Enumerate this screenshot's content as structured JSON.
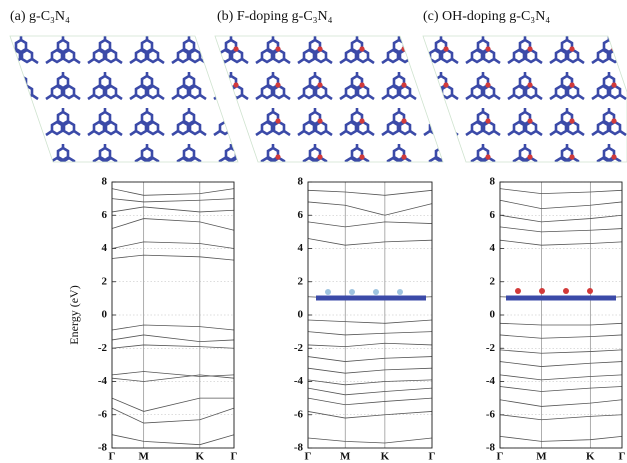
{
  "chart_data": [
    {
      "type": "line",
      "title": "(a) g-C₃N₄",
      "ylabel": "Energy (eV)",
      "color": "#555555",
      "grid": true,
      "x": [
        0,
        0.26,
        0.72,
        1
      ],
      "xlim": [
        0,
        1
      ],
      "xticks": [
        {
          "value": 0,
          "label": "Γ"
        },
        {
          "value": 0.26,
          "label": "M"
        },
        {
          "value": 0.72,
          "label": "K"
        },
        {
          "value": 1,
          "label": "Γ"
        }
      ],
      "ylim": [
        -8,
        8
      ],
      "yticks": [
        -8,
        -6,
        -4,
        -2,
        0,
        2,
        4,
        6,
        8
      ],
      "series": [
        {
          "values": [
            7.6,
            7.2,
            7.3,
            7.6
          ]
        },
        {
          "values": [
            7.0,
            6.8,
            6.9,
            7.0
          ]
        },
        {
          "values": [
            6.2,
            6.5,
            6.2,
            6.3
          ]
        },
        {
          "values": [
            5.2,
            5.8,
            5.6,
            5.1
          ]
        },
        {
          "values": [
            4.0,
            4.4,
            4.3,
            4.0
          ]
        },
        {
          "values": [
            3.4,
            3.6,
            3.5,
            3.3
          ]
        },
        {
          "values": [
            -0.9,
            -0.6,
            -0.7,
            -0.9
          ]
        },
        {
          "values": [
            -1.5,
            -1.2,
            -1.6,
            -1.5
          ]
        },
        {
          "values": [
            -2.0,
            -1.8,
            -1.9,
            -2.0
          ]
        },
        {
          "values": [
            -3.6,
            -3.4,
            -3.7,
            -3.6
          ]
        },
        {
          "values": [
            -3.8,
            -4.0,
            -3.6,
            -3.8
          ]
        },
        {
          "values": [
            -5.0,
            -5.8,
            -5.0,
            -5.0
          ]
        },
        {
          "values": [
            -5.6,
            -6.5,
            -6.3,
            -5.6
          ]
        },
        {
          "values": [
            -7.2,
            -7.6,
            -7.8,
            -7.2
          ]
        }
      ]
    },
    {
      "type": "line",
      "title": "(b) F-doping g-C₃N₄",
      "color": "#555555",
      "grid": true,
      "x": [
        0,
        0.3,
        0.62,
        1
      ],
      "xlim": [
        0,
        1
      ],
      "xticks": [
        {
          "value": 0,
          "label": "Γ"
        },
        {
          "value": 0.3,
          "label": "M"
        },
        {
          "value": 0.62,
          "label": "K"
        },
        {
          "value": 1,
          "label": "Γ"
        }
      ],
      "ylim": [
        -8,
        8
      ],
      "yticks": [
        -8,
        -6,
        -4,
        -2,
        0,
        2,
        4,
        6,
        8
      ],
      "series": [
        {
          "values": [
            7.5,
            7.4,
            7.2,
            7.5
          ]
        },
        {
          "values": [
            6.8,
            6.6,
            6.0,
            6.7
          ]
        },
        {
          "values": [
            5.6,
            5.3,
            5.6,
            5.5
          ]
        },
        {
          "values": [
            4.6,
            4.2,
            4.4,
            4.5
          ]
        },
        {
          "values": [
            1.1,
            1.0,
            1.0,
            1.1
          ]
        },
        {
          "values": [
            -0.3,
            -0.4,
            -0.5,
            -0.3
          ]
        },
        {
          "values": [
            -1.0,
            -1.2,
            -1.1,
            -1.0
          ]
        },
        {
          "values": [
            -1.8,
            -1.9,
            -1.7,
            -1.8
          ]
        },
        {
          "values": [
            -2.5,
            -2.8,
            -2.6,
            -2.5
          ]
        },
        {
          "values": [
            -3.2,
            -3.5,
            -3.3,
            -3.2
          ]
        },
        {
          "values": [
            -3.9,
            -4.2,
            -4.0,
            -3.9
          ]
        },
        {
          "values": [
            -4.4,
            -4.8,
            -4.6,
            -4.4
          ]
        },
        {
          "values": [
            -5.0,
            -5.4,
            -5.2,
            -5.0
          ]
        },
        {
          "values": [
            -5.8,
            -6.2,
            -6.0,
            -5.8
          ]
        },
        {
          "values": [
            -7.4,
            -7.6,
            -7.7,
            -7.4
          ]
        }
      ]
    },
    {
      "type": "line",
      "title": "(c) OH-doping g-C₃N₄",
      "color": "#555555",
      "grid": true,
      "x": [
        0,
        0.34,
        0.74,
        1
      ],
      "xlim": [
        0,
        1
      ],
      "xticks": [
        {
          "value": 0,
          "label": "Γ"
        },
        {
          "value": 0.34,
          "label": "M"
        },
        {
          "value": 0.74,
          "label": "K"
        },
        {
          "value": 1,
          "label": "Γ"
        }
      ],
      "ylim": [
        -8,
        8
      ],
      "yticks": [
        -8,
        -6,
        -4,
        -2,
        0,
        2,
        4,
        6,
        8
      ],
      "series": [
        {
          "values": [
            7.6,
            7.3,
            7.4,
            7.5
          ]
        },
        {
          "values": [
            6.9,
            6.4,
            6.6,
            6.8
          ]
        },
        {
          "values": [
            6.0,
            5.6,
            5.8,
            6.0
          ]
        },
        {
          "values": [
            5.3,
            5.0,
            5.1,
            5.2
          ]
        },
        {
          "values": [
            4.5,
            4.2,
            4.3,
            4.4
          ]
        },
        {
          "values": [
            1.1,
            1.0,
            1.0,
            1.1
          ]
        },
        {
          "values": [
            -0.5,
            -0.6,
            -0.6,
            -0.5
          ]
        },
        {
          "values": [
            -1.2,
            -1.4,
            -1.3,
            -1.2
          ]
        },
        {
          "values": [
            -2.1,
            -2.3,
            -2.2,
            -2.1
          ]
        },
        {
          "values": [
            -2.8,
            -3.1,
            -2.9,
            -2.8
          ]
        },
        {
          "values": [
            -3.6,
            -3.9,
            -3.7,
            -3.6
          ]
        },
        {
          "values": [
            -4.3,
            -4.6,
            -4.4,
            -4.3
          ]
        },
        {
          "values": [
            -5.1,
            -5.5,
            -5.3,
            -5.1
          ]
        },
        {
          "values": [
            -6.0,
            -6.3,
            -6.1,
            -6.0
          ]
        },
        {
          "values": [
            -7.3,
            -7.6,
            -7.5,
            -7.3
          ]
        }
      ]
    }
  ]
}
